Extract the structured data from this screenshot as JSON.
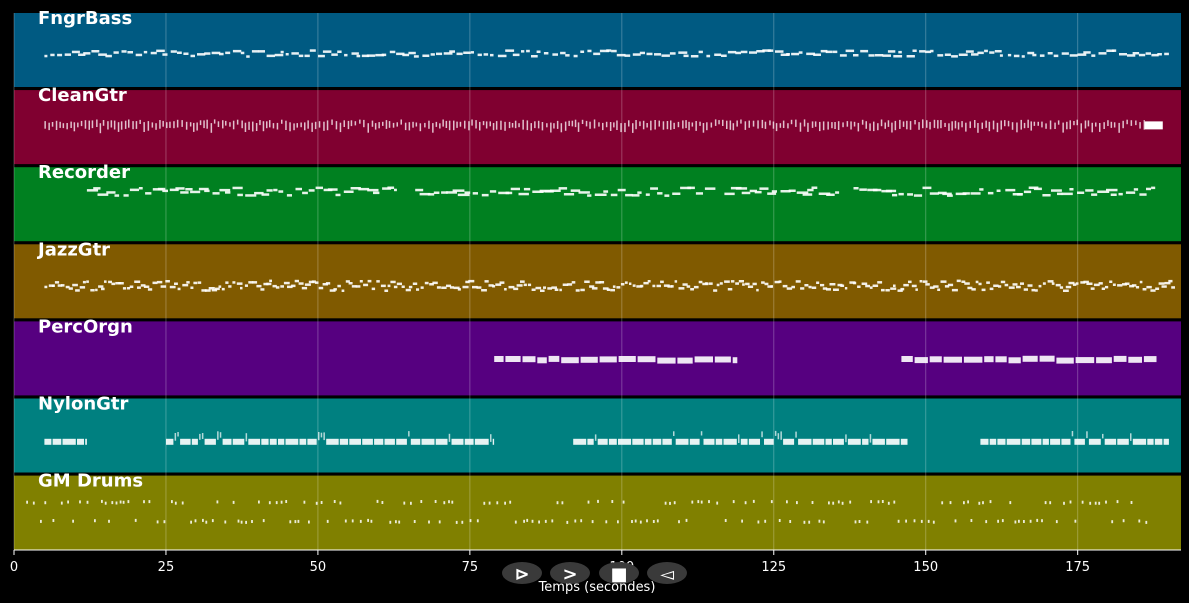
{
  "chart_data": {
    "type": "piano-roll",
    "xlabel": "Temps (secondes)",
    "xlim": [
      0,
      192
    ],
    "xticks": [
      0,
      25,
      50,
      75,
      100,
      125,
      150,
      175
    ],
    "grid": true,
    "background": "#000000",
    "tracks": [
      {
        "name": "FngrBass",
        "color": "#005a82",
        "pattern": "bass",
        "segments": [
          [
            5,
            190
          ]
        ]
      },
      {
        "name": "CleanGtr",
        "color": "#800030",
        "pattern": "strum",
        "segments": [
          [
            5,
            186
          ]
        ],
        "sustain": [
          [
            186,
            189
          ]
        ]
      },
      {
        "name": "Recorder",
        "color": "#008020",
        "pattern": "melody",
        "segments": [
          [
            12,
            63
          ],
          [
            66,
            188
          ]
        ]
      },
      {
        "name": "JazzGtr",
        "color": "#805a00",
        "pattern": "busy",
        "segments": [
          [
            5,
            191
          ]
        ]
      },
      {
        "name": "PercOrgn",
        "color": "#560080",
        "pattern": "blocks",
        "segments": [
          [
            79,
            119
          ],
          [
            146,
            188
          ]
        ]
      },
      {
        "name": "NylonGtr",
        "color": "#008080",
        "pattern": "mixed",
        "segments": [
          [
            5,
            12
          ],
          [
            25,
            79
          ],
          [
            92,
            147
          ],
          [
            159,
            190
          ]
        ]
      },
      {
        "name": "GM Drums",
        "color": "#808000",
        "pattern": "drums",
        "segments": [
          [
            2,
            187
          ]
        ]
      }
    ]
  },
  "controls": [
    {
      "name": "play-icon",
      "glyph": "⊳"
    },
    {
      "name": "forward-icon",
      "glyph": ">"
    },
    {
      "name": "stop-icon",
      "glyph": "■"
    },
    {
      "name": "back-icon",
      "glyph": "◅"
    }
  ]
}
